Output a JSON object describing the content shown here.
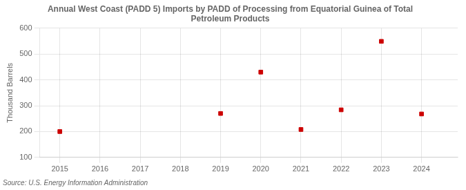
{
  "chart_data": {
    "type": "scatter",
    "title": "Annual West Coast (PADD 5) Imports by PADD of Processing from Equatorial Guinea of Total\nPetroleum Products",
    "ylabel": "Thousand Barrels",
    "source": "Source: U.S. Energy Information Administration",
    "x": [
      2015,
      2019,
      2020,
      2021,
      2022,
      2023,
      2024
    ],
    "values": [
      200,
      270,
      430,
      208,
      284,
      549,
      268
    ],
    "color": "#cc0000",
    "marker": "square",
    "xlim": [
      2014.5,
      2024.9
    ],
    "xticks": [
      2015,
      2016,
      2017,
      2018,
      2019,
      2020,
      2021,
      2022,
      2023,
      2024
    ],
    "ylim": [
      100,
      600
    ],
    "yticks": [
      100,
      200,
      300,
      400,
      500,
      600
    ],
    "grid": true
  }
}
